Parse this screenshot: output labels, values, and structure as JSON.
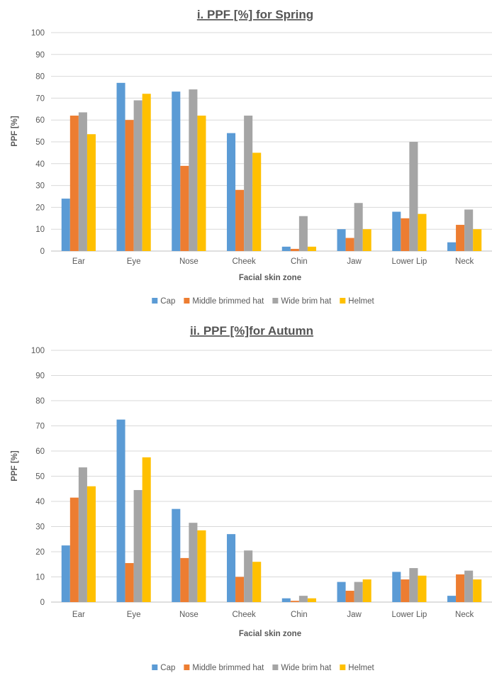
{
  "chart_data": [
    {
      "type": "bar",
      "title": "i. PPF [%] for Spring",
      "xlabel": "Facial skin zone",
      "ylabel": "PPF [%]",
      "ylim": [
        0,
        100
      ],
      "yticks": [
        "0",
        "10",
        "20",
        "30",
        "40",
        "50",
        "60",
        "70",
        "80",
        "90",
        "100"
      ],
      "grid": true,
      "legend": "bottom",
      "categories": [
        "Ear",
        "Eye",
        "Nose",
        "Cheek",
        "Chin",
        "Jaw",
        "Lower Lip",
        "Neck"
      ],
      "series": [
        {
          "name": "Cap",
          "color": "#5b9bd5",
          "values": [
            24,
            77,
            73,
            54,
            2,
            10,
            18,
            4
          ]
        },
        {
          "name": "Middle brimmed hat",
          "color": "#ed7d31",
          "values": [
            62,
            60,
            39,
            28,
            1,
            6,
            15,
            12
          ]
        },
        {
          "name": "Wide brim hat",
          "color": "#a5a5a5",
          "values": [
            63.5,
            69,
            74,
            62,
            16,
            22,
            50,
            19
          ]
        },
        {
          "name": "Helmet",
          "color": "#ffc000",
          "values": [
            53.5,
            72,
            62,
            45,
            2,
            10,
            17,
            10
          ]
        }
      ]
    },
    {
      "type": "bar",
      "title": "ii. PPF [%]for Autumn",
      "xlabel": "Facial skin zone",
      "ylabel": "PPF [%]",
      "ylim": [
        0,
        100
      ],
      "yticks": [
        "0",
        "10",
        "20",
        "30",
        "40",
        "50",
        "60",
        "70",
        "80",
        "90",
        "100"
      ],
      "grid": true,
      "legend": "bottom",
      "categories": [
        "Ear",
        "Eye",
        "Nose",
        "Cheek",
        "Chin",
        "Jaw",
        "Lower Lip",
        "Neck"
      ],
      "series": [
        {
          "name": "Cap",
          "color": "#5b9bd5",
          "values": [
            22.5,
            72.5,
            37,
            27,
            1.5,
            8,
            12,
            2.5
          ]
        },
        {
          "name": "Middle brimmed hat",
          "color": "#ed7d31",
          "values": [
            41.5,
            15.5,
            17.5,
            10,
            0.5,
            4.5,
            9,
            11
          ]
        },
        {
          "name": "Wide brim hat",
          "color": "#a5a5a5",
          "values": [
            53.5,
            44.5,
            31.5,
            20.5,
            2.5,
            8,
            13.5,
            12.5
          ]
        },
        {
          "name": "Helmet",
          "color": "#ffc000",
          "values": [
            46,
            57.5,
            28.5,
            16,
            1.5,
            9,
            10.5,
            9
          ]
        }
      ]
    }
  ]
}
